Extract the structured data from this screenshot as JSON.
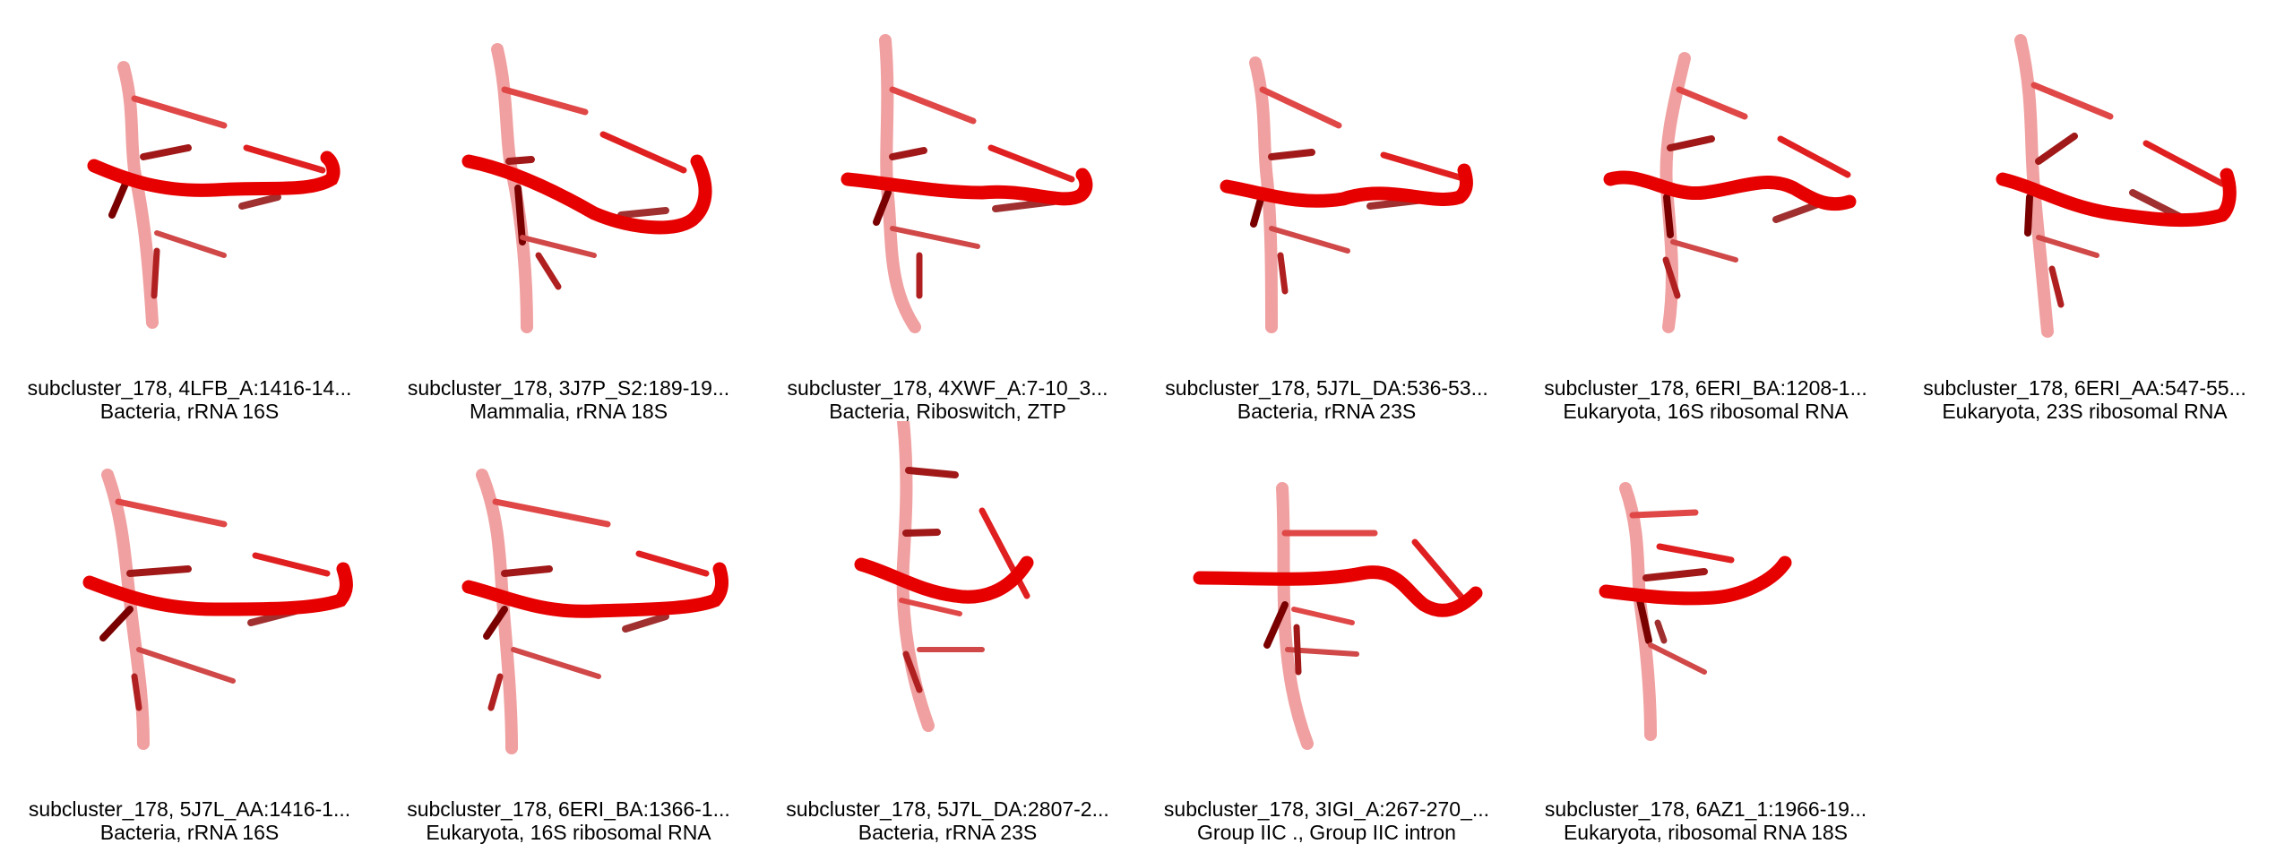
{
  "panels": [
    {
      "title": "subcluster_178, 4LFB_A:1416-14...",
      "subtitle": "Bacteria, rRNA 16S"
    },
    {
      "title": "subcluster_178, 3J7P_S2:189-19...",
      "subtitle": "Mammalia, rRNA 18S"
    },
    {
      "title": "subcluster_178, 4XWF_A:7-10_3...",
      "subtitle": "Bacteria, Riboswitch, ZTP"
    },
    {
      "title": "subcluster_178, 5J7L_DA:536-53...",
      "subtitle": "Bacteria, rRNA 23S"
    },
    {
      "title": "subcluster_178, 6ERI_BA:1208-1...",
      "subtitle": "Eukaryota, 16S ribosomal RNA"
    },
    {
      "title": "subcluster_178, 6ERI_AA:547-55...",
      "subtitle": "Eukaryota, 23S ribosomal RNA"
    },
    {
      "title": "subcluster_178, 5J7L_AA:1416-1...",
      "subtitle": "Bacteria, rRNA 16S"
    },
    {
      "title": "subcluster_178, 6ERI_BA:1366-1...",
      "subtitle": "Eukaryota, 16S ribosomal RNA"
    },
    {
      "title": "subcluster_178, 5J7L_DA:2807-2...",
      "subtitle": "Bacteria, rRNA 23S"
    },
    {
      "title": "subcluster_178, 3IGI_A:267-270_...",
      "subtitle": "Group IIC ., Group IIC intron"
    },
    {
      "title": "subcluster_178, 6AZ1_1:1966-19...",
      "subtitle": "Eukaryota, ribosomal RNA 18S"
    }
  ],
  "colors": {
    "backbone_light": "#f08080",
    "backbone_main": "#e60000",
    "base_dark": "#7a0000",
    "base_mid": "#d04040"
  }
}
